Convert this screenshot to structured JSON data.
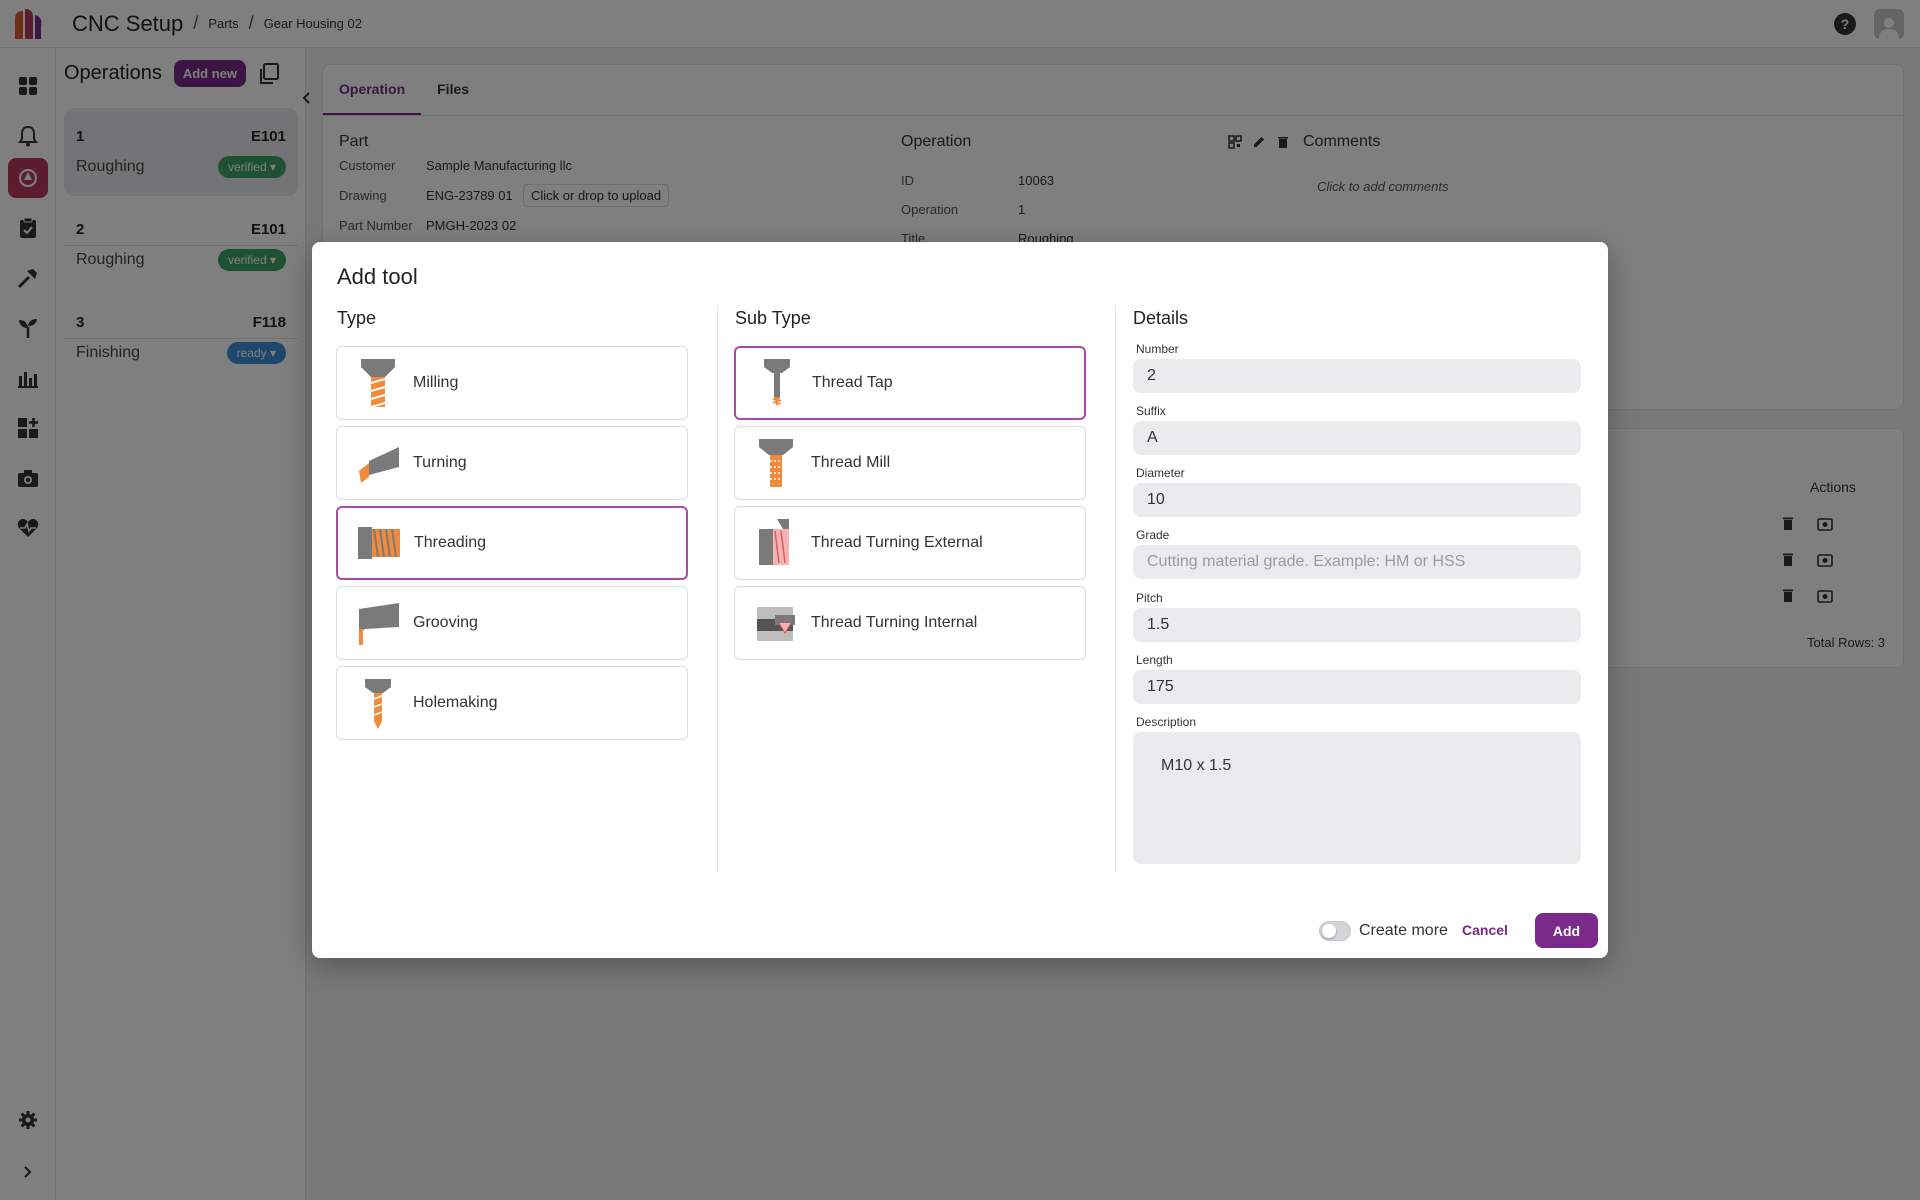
{
  "app": {
    "title": "CNC Setup"
  },
  "breadcrumb": [
    "Parts",
    "Gear Housing 02"
  ],
  "header": {
    "help_icon": "help-icon",
    "avatar_icon": "user-avatar-icon"
  },
  "nav": {
    "icons": [
      "dashboard-icon",
      "bell-icon",
      "cnc-setup-icon",
      "clipboard-icon",
      "tools-icon",
      "sprout-icon",
      "chart-icon",
      "widgets-icon",
      "camera-icon",
      "heartbeat-icon",
      "settings-icon",
      "expand-icon"
    ]
  },
  "operations": {
    "title": "Operations",
    "add_new": "Add new",
    "items": [
      {
        "num": "1",
        "code": "E101",
        "name": "Roughing",
        "status": "verified"
      },
      {
        "num": "2",
        "code": "E101",
        "name": "Roughing",
        "status": "verified"
      },
      {
        "num": "3",
        "code": "F118",
        "name": "Finishing",
        "status": "ready"
      }
    ]
  },
  "tabs": [
    "Operation",
    "Files"
  ],
  "part": {
    "title": "Part",
    "customer_label": "Customer",
    "customer": "Sample Manufacturing llc",
    "drawing_label": "Drawing",
    "drawing": "ENG-23789 01",
    "upload": "Click or drop to upload",
    "part_number_label": "Part Number",
    "part_number": "PMGH-2023 02"
  },
  "operation_info": {
    "title": "Operation",
    "id_label": "ID",
    "id": "10063",
    "operation_label": "Operation",
    "operation": "1",
    "title_label": "Title",
    "title_value": "Roughing"
  },
  "comments": {
    "title": "Comments",
    "placeholder": "Click to add comments"
  },
  "table": {
    "actions_header": "Actions",
    "total_rows": "Total Rows: 3"
  },
  "modal": {
    "title": "Add tool",
    "type_title": "Type",
    "subtype_title": "Sub Type",
    "details_title": "Details",
    "types": [
      {
        "label": "Milling",
        "selected": false
      },
      {
        "label": "Turning",
        "selected": false
      },
      {
        "label": "Threading",
        "selected": true
      },
      {
        "label": "Grooving",
        "selected": false
      },
      {
        "label": "Holemaking",
        "selected": false
      }
    ],
    "subtypes": [
      {
        "label": "Thread Tap",
        "selected": true
      },
      {
        "label": "Thread Mill",
        "selected": false
      },
      {
        "label": "Thread Turning External",
        "selected": false
      },
      {
        "label": "Thread Turning Internal",
        "selected": false
      }
    ],
    "details": {
      "number_label": "Number",
      "number": "2",
      "suffix_label": "Suffix",
      "suffix": "A",
      "diameter_label": "Diameter",
      "diameter": "10",
      "grade_label": "Grade",
      "grade_placeholder": "Cutting material grade. Example: HM or HSS",
      "pitch_label": "Pitch",
      "pitch": "1.5",
      "length_label": "Length",
      "length": "175",
      "description_label": "Description",
      "description": "M10 x 1.5"
    },
    "create_more_label": "Create more",
    "create_more_on": false,
    "cancel": "Cancel",
    "add": "Add"
  },
  "colors": {
    "accent": "#7a2a8a",
    "brand": "#b63b5c",
    "verified": "#3fa565",
    "ready": "#3b8ed8",
    "tool_orange": "#f08a3c",
    "tool_gray": "#7a7a7a"
  }
}
